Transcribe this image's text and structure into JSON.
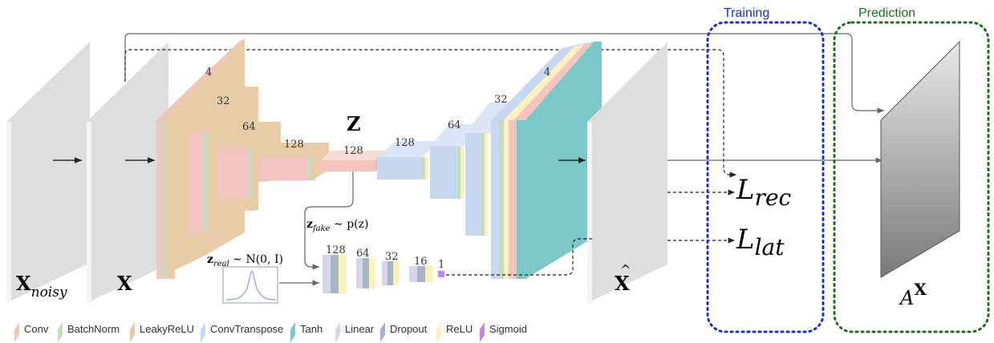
{
  "regions": {
    "training": "Training",
    "prediction": "Prediction"
  },
  "labels": {
    "x_noisy_base": "X",
    "x_noisy_sub": "noisy",
    "x": "X",
    "z": "Z",
    "x_hat": "X",
    "x_hat_accent": "^",
    "l_rec_base": "L",
    "l_rec_sub": "rec",
    "l_lat_base": "L",
    "l_lat_sub": "lat",
    "a_base": "A",
    "a_sup": "X",
    "z_fake": "z",
    "z_fake_sub": "fake",
    "z_fake_rest": " ∼ p(z)",
    "z_real": "z",
    "z_real_sub": "real",
    "z_real_rest": " ∼ N(0, I)"
  },
  "encoder_dims": [
    "4",
    "32",
    "64",
    "128"
  ],
  "latent_dim": "128",
  "decoder_dims": [
    "128",
    "64",
    "32",
    "4"
  ],
  "disc_dims": [
    "128",
    "64",
    "32",
    "16",
    "1"
  ],
  "legend": [
    {
      "label": "Conv",
      "color": "#f4c4c0"
    },
    {
      "label": "BatchNorm",
      "color": "#c4dcc0"
    },
    {
      "label": "LeakyReLU",
      "color": "#e8cca8"
    },
    {
      "label": "ConvTranspose",
      "color": "#c8d8f0"
    },
    {
      "label": "Tanh",
      "color": "#7cc8c8"
    },
    {
      "label": "Linear",
      "color": "#d8d4ec"
    },
    {
      "label": "Dropout",
      "color": "#a8b4c4"
    },
    {
      "label": "ReLU",
      "color": "#fff0c0"
    },
    {
      "label": "Sigmoid",
      "color": "#c088e0"
    }
  ],
  "colors": {
    "training_box": "#1a2fc8",
    "prediction_box": "#1f6e1f",
    "training_text": "#1a2fc8",
    "prediction_text": "#1f6e1f",
    "conv": "#f4c4c0",
    "batchnorm": "#c4dcc0",
    "leakyrelu": "#e8cca8",
    "convtranspose": "#c8d8f0",
    "tanh": "#7cc8c8"
  }
}
